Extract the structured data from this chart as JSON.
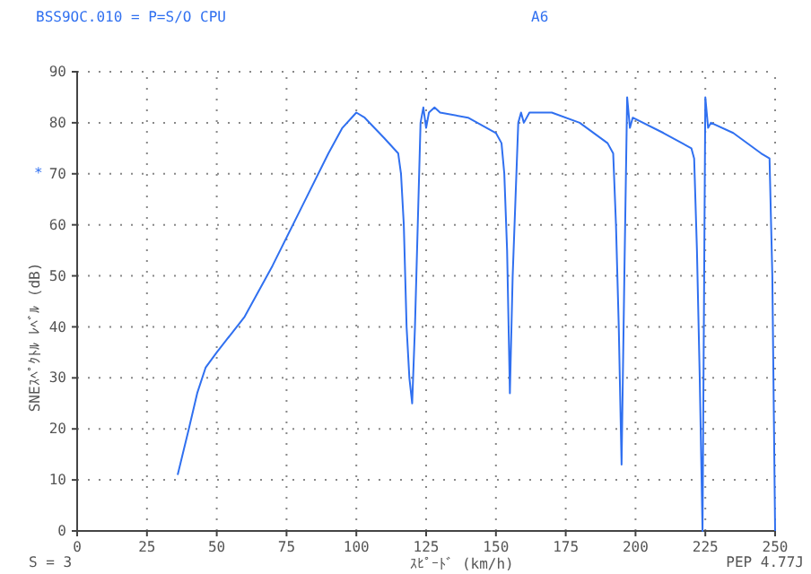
{
  "chart_data": {
    "type": "line",
    "title": "BSS9OC.010 = P=S/O CPU",
    "subtitle": "A6",
    "xlabel": "ｽﾋﾟｰﾄﾞ (km/h)",
    "ylabel": "SNEｽﾍﾟｸﾄﾙ ﾚﾍﾞﾙ (dB)",
    "annotations": [
      "*",
      "S = 3",
      "PEP 4.77J"
    ],
    "xlim": [
      0,
      250
    ],
    "xticks": [
      0,
      25,
      50,
      75,
      100,
      125,
      150,
      175,
      200,
      225,
      250
    ],
    "ylim": [
      0,
      90
    ],
    "yticks": [
      0,
      10,
      20,
      30,
      40,
      50,
      60,
      70,
      80,
      90
    ],
    "grid": true,
    "line_style": "solid",
    "marker": "none",
    "series": [
      {
        "color": "#3070f0",
        "x": [
          36,
          40,
          43,
          46,
          50,
          60,
          70,
          80,
          90,
          95,
          100,
          103,
          110,
          115,
          116,
          117,
          118,
          119,
          120,
          121,
          122,
          123,
          124,
          125,
          126,
          128,
          130,
          140,
          150,
          152,
          153,
          154,
          155,
          156,
          157,
          158,
          159,
          160,
          162,
          170,
          180,
          190,
          192,
          193,
          194,
          195,
          196,
          197,
          198,
          199,
          210,
          220,
          221,
          222,
          223,
          224,
          225,
          226,
          227,
          235,
          245,
          248,
          249,
          250
        ],
        "values": [
          11,
          20,
          27,
          32,
          35,
          42,
          52,
          63,
          74,
          79,
          82,
          81,
          77,
          74,
          70,
          60,
          40,
          30,
          25,
          40,
          60,
          80,
          83,
          79,
          82,
          83,
          82,
          81,
          78,
          76,
          70,
          55,
          27,
          50,
          65,
          80,
          82,
          80,
          82,
          82,
          80,
          76,
          74,
          60,
          40,
          13,
          50,
          85,
          79,
          81,
          78,
          75,
          73,
          55,
          30,
          0,
          85,
          79,
          80,
          78,
          74,
          73,
          50,
          0
        ]
      }
    ]
  }
}
